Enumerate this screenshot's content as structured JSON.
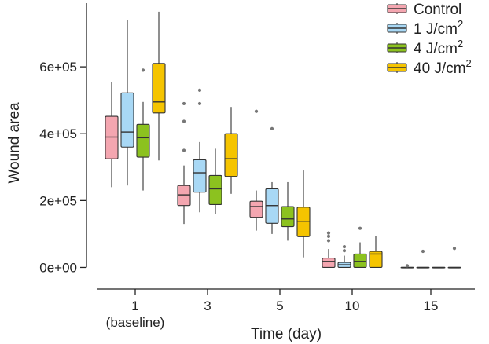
{
  "chart_data": {
    "type": "boxplot",
    "xlabel": "Time (day)",
    "ylabel": "Wound area",
    "ylim": [
      -60000,
      800000
    ],
    "y_ticks": [
      {
        "value": 0,
        "label": "0e+00"
      },
      {
        "value": 200000,
        "label": "2e+05"
      },
      {
        "value": 400000,
        "label": "4e+05"
      },
      {
        "value": 600000,
        "label": "6e+05"
      }
    ],
    "categories": [
      {
        "label": "1",
        "sublabel": "(baseline)"
      },
      {
        "label": "3",
        "sublabel": ""
      },
      {
        "label": "5",
        "sublabel": ""
      },
      {
        "label": "10",
        "sublabel": ""
      },
      {
        "label": "15",
        "sublabel": ""
      }
    ],
    "legend": {
      "position": "top-right",
      "entries": [
        {
          "prefix": "Control",
          "sup": ""
        },
        {
          "prefix": "1 J/cm",
          "sup": "2"
        },
        {
          "prefix": "4 J/cm",
          "sup": "2"
        },
        {
          "prefix": "40 J/cm",
          "sup": "2"
        }
      ]
    },
    "series": [
      {
        "name": "Control",
        "color": "#f4a6b0",
        "boxes": [
          {
            "min": 240000,
            "q1": 325000,
            "median": 390000,
            "q3": 452000,
            "max": 555000,
            "outliers": []
          },
          {
            "min": 130000,
            "q1": 185000,
            "median": 217000,
            "q3": 245000,
            "max": 305000,
            "outliers": [
              350000,
              437000,
              490000
            ]
          },
          {
            "min": 110000,
            "q1": 150000,
            "median": 182000,
            "q3": 198000,
            "max": 230000,
            "outliers": [
              467000
            ]
          },
          {
            "min": 0,
            "q1": 0,
            "median": 18000,
            "q3": 28000,
            "max": 55000,
            "outliers": [
              80000,
              93000,
              103000
            ]
          },
          {
            "min": 0,
            "q1": 0,
            "median": 0,
            "q3": 0,
            "max": 0,
            "outliers": [
              5000
            ]
          }
        ]
      },
      {
        "name": "1 J/cm2",
        "color": "#a8d8f5",
        "boxes": [
          {
            "min": 245000,
            "q1": 360000,
            "median": 405000,
            "q3": 522000,
            "max": 740000,
            "outliers": []
          },
          {
            "min": 165000,
            "q1": 225000,
            "median": 283000,
            "q3": 322000,
            "max": 375000,
            "outliers": [
              490000,
              530000
            ]
          },
          {
            "min": 100000,
            "q1": 132000,
            "median": 185000,
            "q3": 235000,
            "max": 255000,
            "outliers": [
              415000
            ]
          },
          {
            "min": 0,
            "q1": 0,
            "median": 8000,
            "q3": 15000,
            "max": 35000,
            "outliers": [
              50000,
              62000
            ]
          },
          {
            "min": 0,
            "q1": 0,
            "median": 0,
            "q3": 0,
            "max": 0,
            "outliers": [
              48000
            ]
          }
        ]
      },
      {
        "name": "4 J/cm2",
        "color": "#8cc21f",
        "boxes": [
          {
            "min": 230000,
            "q1": 330000,
            "median": 388000,
            "q3": 428000,
            "max": 495000,
            "outliers": [
              590000
            ]
          },
          {
            "min": 160000,
            "q1": 188000,
            "median": 235000,
            "q3": 275000,
            "max": 355000,
            "outliers": []
          },
          {
            "min": 80000,
            "q1": 122000,
            "median": 145000,
            "q3": 182000,
            "max": 255000,
            "outliers": []
          },
          {
            "min": 0,
            "q1": 0,
            "median": 18000,
            "q3": 40000,
            "max": 75000,
            "outliers": [
              117000
            ]
          },
          {
            "min": 0,
            "q1": 0,
            "median": 0,
            "q3": 0,
            "max": 0,
            "outliers": []
          }
        ]
      },
      {
        "name": "40 J/cm2",
        "color": "#f5c400",
        "boxes": [
          {
            "min": 320000,
            "q1": 462000,
            "median": 495000,
            "q3": 610000,
            "max": 765000,
            "outliers": []
          },
          {
            "min": 220000,
            "q1": 272000,
            "median": 325000,
            "q3": 400000,
            "max": 480000,
            "outliers": []
          },
          {
            "min": 30000,
            "q1": 92000,
            "median": 138000,
            "q3": 180000,
            "max": 290000,
            "outliers": []
          },
          {
            "min": 0,
            "q1": 0,
            "median": 40000,
            "q3": 48000,
            "max": 95000,
            "outliers": []
          },
          {
            "min": 0,
            "q1": 0,
            "median": 0,
            "q3": 0,
            "max": 0,
            "outliers": [
              57000
            ]
          }
        ]
      }
    ]
  }
}
